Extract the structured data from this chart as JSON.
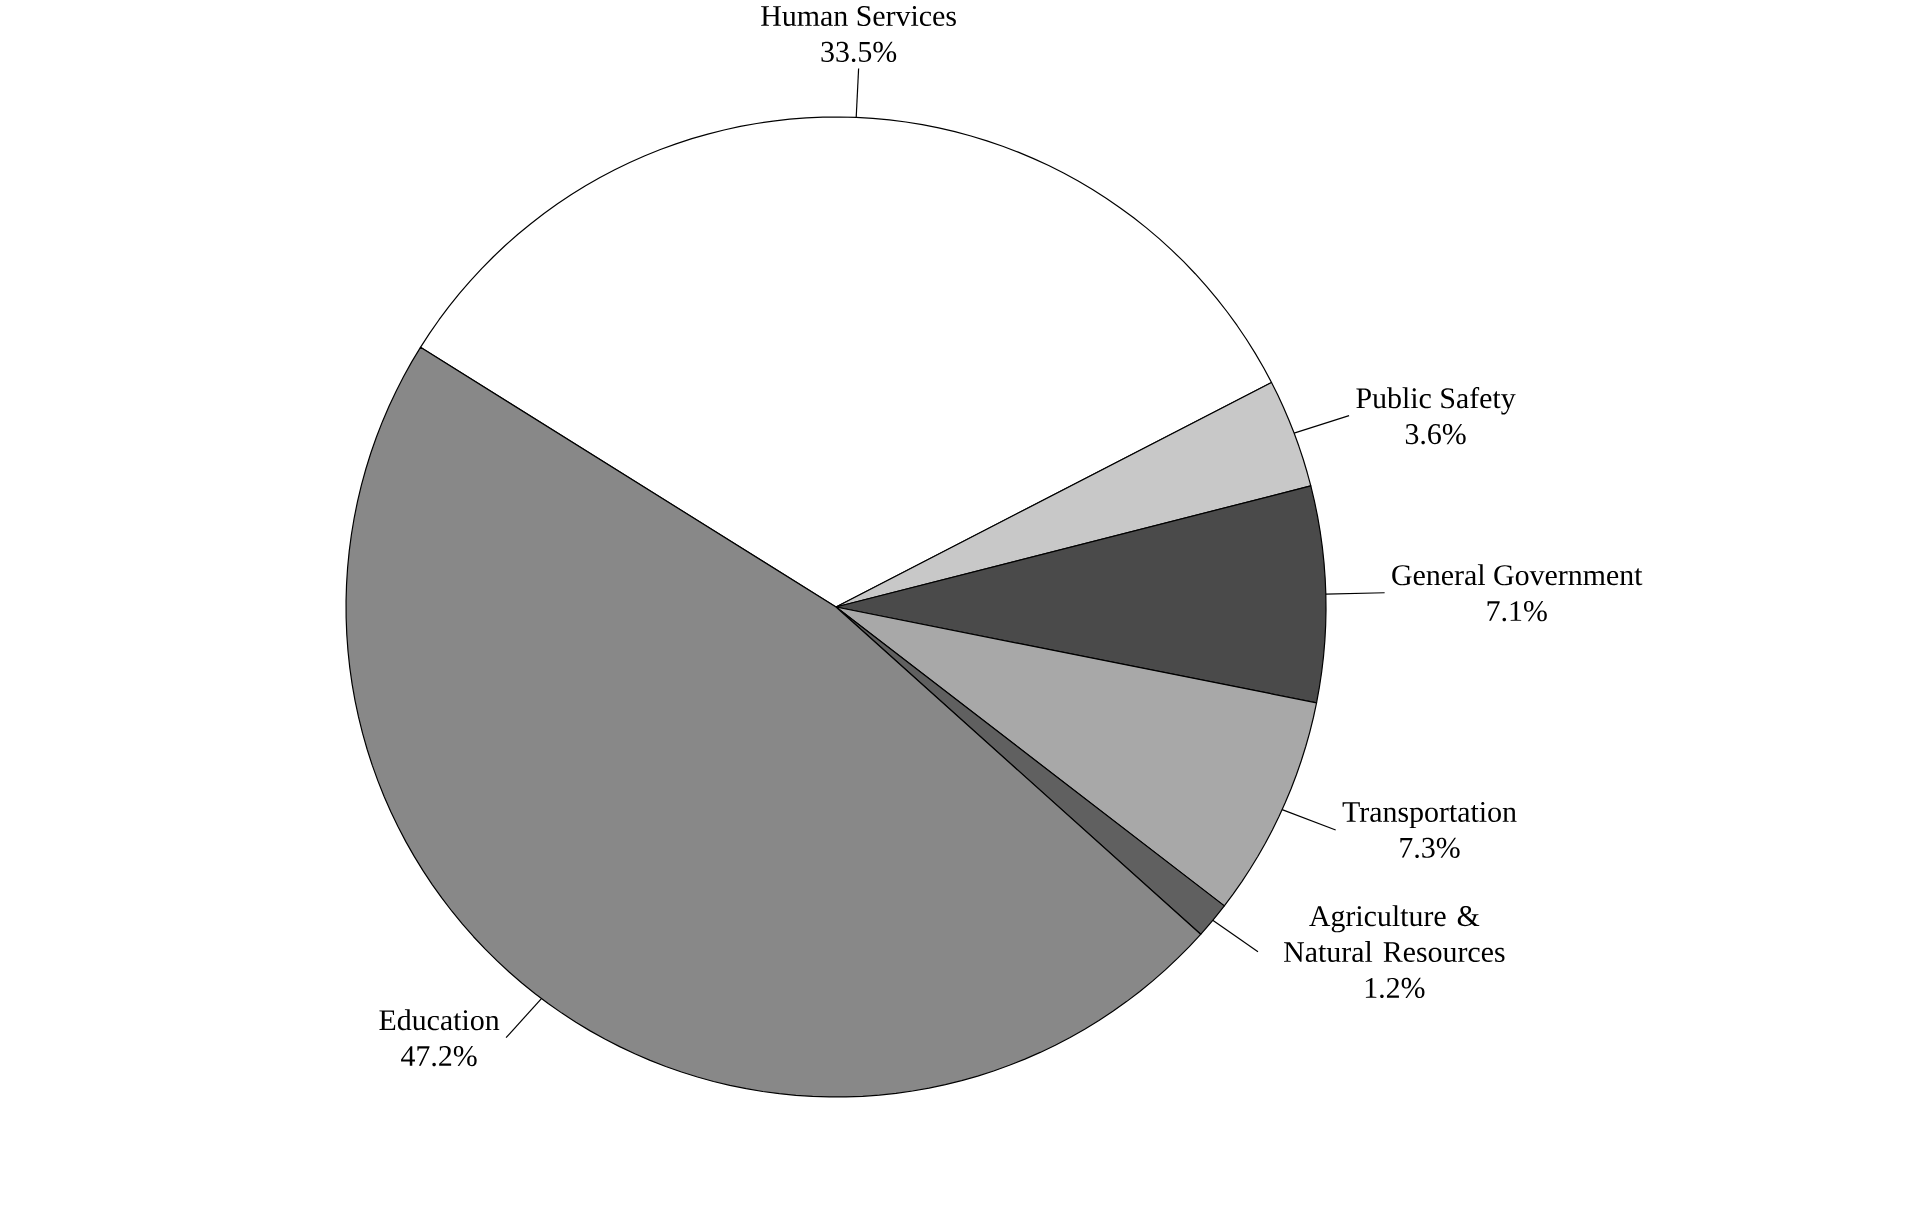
{
  "chart_data": {
    "type": "pie",
    "categories": [
      "Human Services",
      "Public Safety",
      "General Government",
      "Transportation",
      "Agriculture & Natural Resources",
      "Education"
    ],
    "values": [
      33.5,
      3.6,
      7.1,
      7.3,
      1.2,
      47.2
    ],
    "colors": [
      "#ffffff",
      "#c8c8c8",
      "#4a4a4a",
      "#a8a8a8",
      "#606060",
      "#888888"
    ],
    "value_labels": [
      "33.5%",
      "3.6%",
      "7.1%",
      "7.3%",
      "1.2%",
      "47.2%"
    ]
  }
}
